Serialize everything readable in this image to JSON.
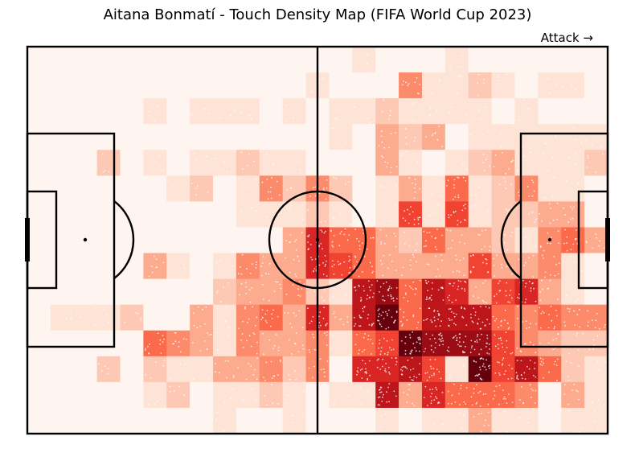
{
  "chart_data": {
    "type": "heatmap",
    "title": "Aitana Bonmatí - Touch Density Map (FIFA World Cup 2023)",
    "annotation": "Attack →",
    "x_range": [
      0,
      120
    ],
    "y_range": [
      0,
      80
    ],
    "colormap": "Reds",
    "colors": {
      "low": "#fff5f0",
      "high": "#67000d"
    },
    "grid": false,
    "bins": {
      "cols": 25,
      "rows": 15
    },
    "density": [
      [
        0,
        0,
        0,
        0,
        0,
        0,
        0,
        0,
        0,
        0,
        0,
        0,
        0,
        0,
        1,
        0,
        0,
        0,
        1,
        0,
        0,
        0,
        0,
        0,
        0
      ],
      [
        0,
        0,
        0,
        0,
        0,
        0,
        0,
        0,
        0,
        0,
        0,
        0,
        1,
        0,
        0,
        0,
        4,
        1,
        1,
        2,
        1,
        0,
        1,
        1,
        0
      ],
      [
        0,
        0,
        0,
        0,
        0,
        1,
        0,
        1,
        1,
        1,
        0,
        1,
        0,
        1,
        1,
        2,
        1,
        1,
        1,
        1,
        0,
        1,
        0,
        0,
        0
      ],
      [
        0,
        0,
        0,
        0,
        0,
        0,
        0,
        0,
        0,
        0,
        0,
        0,
        0,
        1,
        0,
        3,
        2,
        3,
        0,
        1,
        1,
        1,
        1,
        1,
        1
      ],
      [
        0,
        0,
        0,
        2,
        0,
        1,
        0,
        1,
        1,
        2,
        1,
        1,
        0,
        0,
        0,
        3,
        1,
        0,
        1,
        2,
        3,
        1,
        1,
        1,
        2
      ],
      [
        0,
        0,
        0,
        0,
        0,
        0,
        1,
        2,
        0,
        1,
        4,
        2,
        4,
        2,
        0,
        1,
        3,
        1,
        5,
        1,
        2,
        4,
        1,
        1,
        0
      ],
      [
        0,
        0,
        0,
        0,
        0,
        0,
        0,
        0,
        0,
        1,
        1,
        1,
        2,
        1,
        0,
        1,
        6,
        1,
        6,
        1,
        2,
        2,
        3,
        3,
        0
      ],
      [
        0,
        0,
        0,
        0,
        0,
        0,
        0,
        0,
        0,
        0,
        0,
        3,
        7,
        5,
        5,
        3,
        2,
        5,
        3,
        3,
        2,
        1,
        4,
        5,
        3
      ],
      [
        0,
        0,
        0,
        0,
        0,
        3,
        1,
        0,
        1,
        4,
        3,
        3,
        7,
        6,
        5,
        3,
        3,
        3,
        3,
        6,
        3,
        3,
        4,
        1,
        0
      ],
      [
        0,
        0,
        0,
        0,
        0,
        0,
        0,
        0,
        2,
        3,
        3,
        4,
        2,
        1,
        8,
        9,
        5,
        8,
        7,
        3,
        6,
        7,
        3,
        1,
        0
      ],
      [
        0,
        1,
        1,
        1,
        2,
        0,
        0,
        3,
        1,
        4,
        5,
        3,
        7,
        3,
        8,
        10,
        5,
        8,
        8,
        8,
        5,
        4,
        5,
        4,
        4
      ],
      [
        0,
        0,
        0,
        0,
        0,
        5,
        4,
        3,
        1,
        4,
        3,
        3,
        4,
        1,
        5,
        6,
        10,
        9,
        9,
        9,
        6,
        4,
        3,
        2,
        2
      ],
      [
        0,
        0,
        0,
        2,
        0,
        2,
        1,
        1,
        3,
        3,
        4,
        2,
        4,
        0,
        7,
        7,
        8,
        6,
        1,
        10,
        6,
        8,
        5,
        2,
        1
      ],
      [
        0,
        0,
        0,
        0,
        0,
        1,
        2,
        0,
        1,
        1,
        2,
        1,
        0,
        1,
        1,
        8,
        3,
        7,
        5,
        5,
        5,
        4,
        0,
        3,
        1
      ],
      [
        0,
        0,
        0,
        0,
        0,
        0,
        0,
        0,
        1,
        0,
        0,
        1,
        0,
        0,
        0,
        1,
        0,
        1,
        1,
        3,
        1,
        1,
        0,
        1,
        1
      ]
    ],
    "density_max": 10
  }
}
